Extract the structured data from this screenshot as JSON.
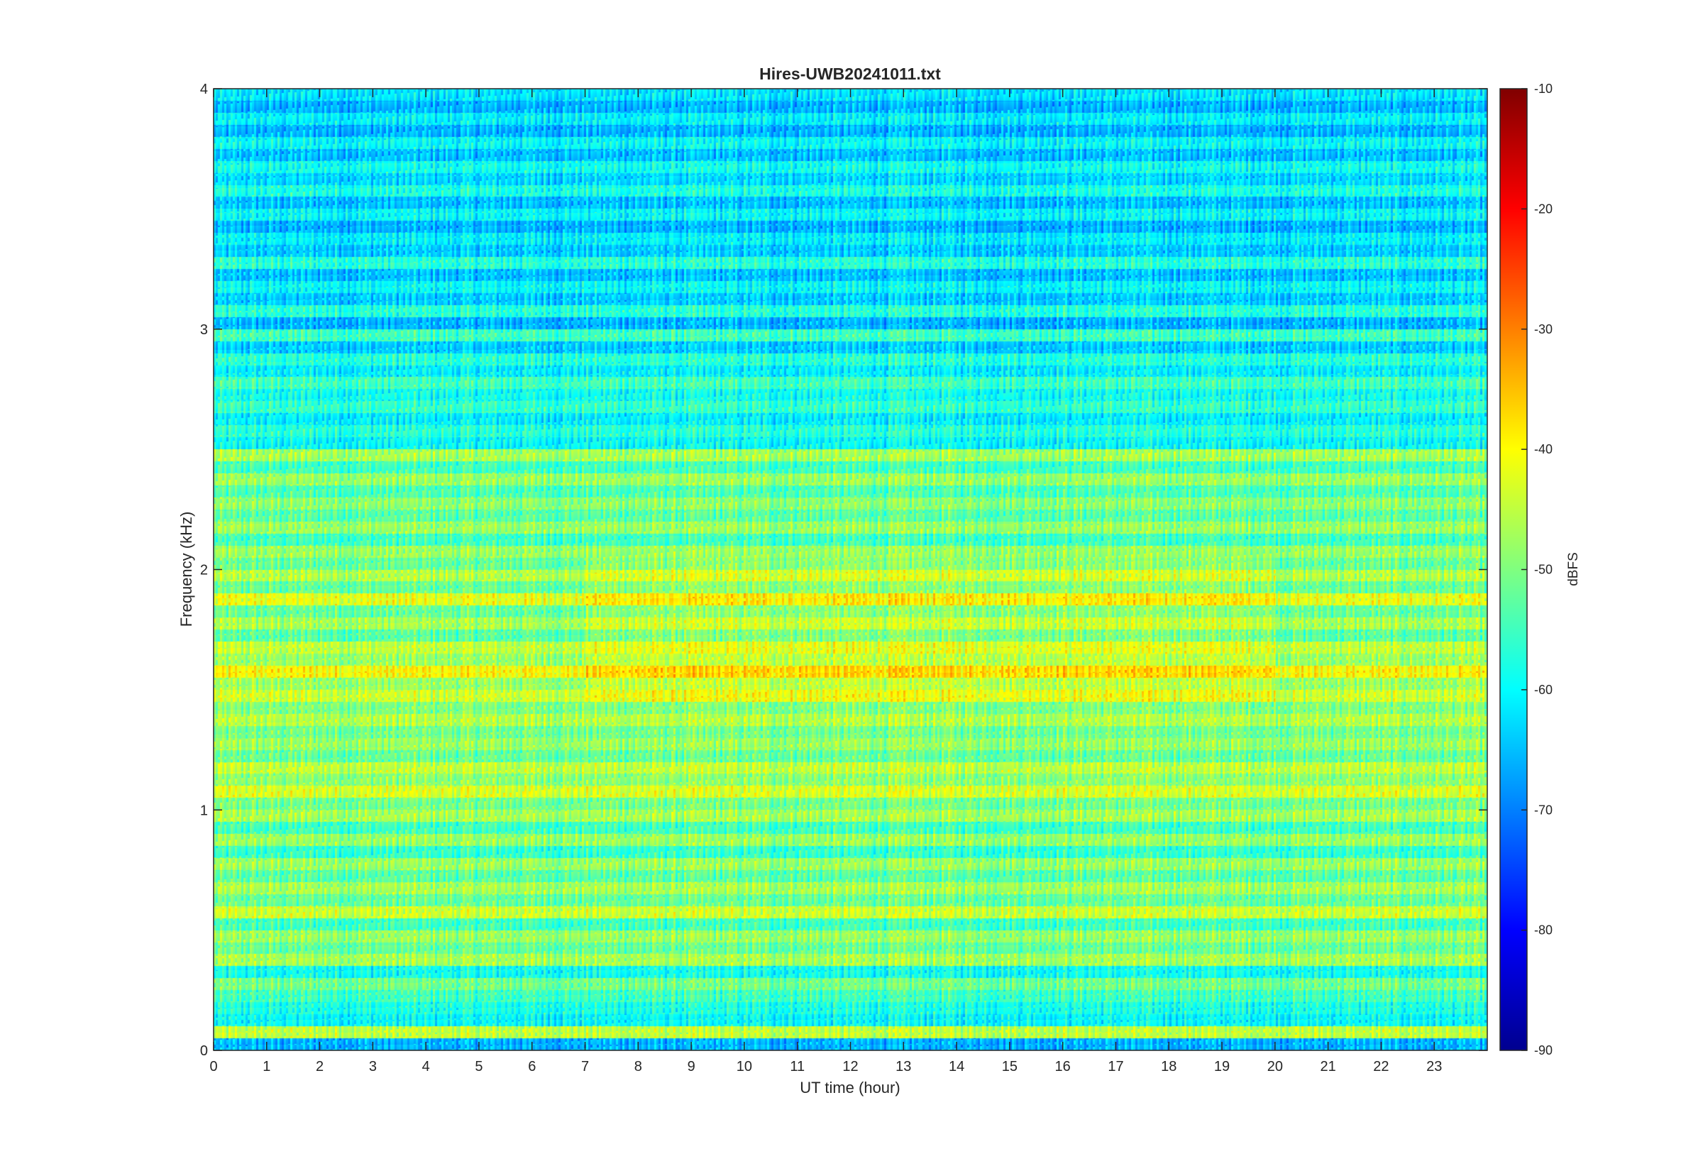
{
  "chart_data": {
    "type": "heatmap",
    "title": "Hires-UWB20241011.txt",
    "xlabel": "UT time (hour)",
    "ylabel": "Frequency (kHz)",
    "colorbar_label": "dBFS",
    "xlim": [
      0,
      24
    ],
    "ylim": [
      0,
      4
    ],
    "clim": [
      -90,
      -10
    ],
    "colormap": "jet",
    "x_ticks": [
      0,
      1,
      2,
      3,
      4,
      5,
      6,
      7,
      8,
      9,
      10,
      11,
      12,
      13,
      14,
      15,
      16,
      17,
      18,
      19,
      20,
      21,
      22,
      23
    ],
    "y_ticks": [
      0,
      1,
      2,
      3,
      4
    ],
    "colorbar_ticks": [
      -90,
      -80,
      -70,
      -60,
      -50,
      -40,
      -30,
      -20,
      -10
    ],
    "grid": false,
    "legend": "none",
    "bands_khz_db": [
      [
        0.0,
        -66
      ],
      [
        0.05,
        -45
      ],
      [
        0.1,
        -60
      ],
      [
        0.15,
        -58
      ],
      [
        0.2,
        -55
      ],
      [
        0.25,
        -51
      ],
      [
        0.3,
        -59
      ],
      [
        0.35,
        -47
      ],
      [
        0.4,
        -52
      ],
      [
        0.45,
        -48
      ],
      [
        0.5,
        -55
      ],
      [
        0.55,
        -44
      ],
      [
        0.6,
        -52
      ],
      [
        0.65,
        -47
      ],
      [
        0.7,
        -53
      ],
      [
        0.75,
        -48
      ],
      [
        0.8,
        -56
      ],
      [
        0.85,
        -48
      ],
      [
        0.9,
        -55
      ],
      [
        0.95,
        -47
      ],
      [
        1.0,
        -51
      ],
      [
        1.05,
        -43
      ],
      [
        1.1,
        -49
      ],
      [
        1.15,
        -45
      ],
      [
        1.2,
        -52
      ],
      [
        1.25,
        -48
      ],
      [
        1.3,
        -51
      ],
      [
        1.35,
        -46
      ],
      [
        1.4,
        -50
      ],
      [
        1.45,
        -44
      ],
      [
        1.5,
        -48
      ],
      [
        1.55,
        -40
      ],
      [
        1.6,
        -48
      ],
      [
        1.65,
        -45
      ],
      [
        1.7,
        -53
      ],
      [
        1.75,
        -47
      ],
      [
        1.8,
        -52
      ],
      [
        1.85,
        -42
      ],
      [
        1.9,
        -52
      ],
      [
        1.95,
        -46
      ],
      [
        2.0,
        -52
      ],
      [
        2.05,
        -48
      ],
      [
        2.1,
        -55
      ],
      [
        2.15,
        -48
      ],
      [
        2.2,
        -53
      ],
      [
        2.25,
        -49
      ],
      [
        2.3,
        -54
      ],
      [
        2.35,
        -48
      ],
      [
        2.4,
        -55
      ],
      [
        2.45,
        -47
      ],
      [
        2.5,
        -60
      ],
      [
        2.55,
        -57
      ],
      [
        2.6,
        -61
      ],
      [
        2.65,
        -56
      ],
      [
        2.7,
        -59
      ],
      [
        2.75,
        -55
      ],
      [
        2.8,
        -61
      ],
      [
        2.85,
        -57
      ],
      [
        2.9,
        -64
      ],
      [
        2.95,
        -55
      ],
      [
        3.0,
        -66
      ],
      [
        3.05,
        -57
      ],
      [
        3.1,
        -64
      ],
      [
        3.15,
        -60
      ],
      [
        3.2,
        -65
      ],
      [
        3.25,
        -57
      ],
      [
        3.3,
        -64
      ],
      [
        3.35,
        -61
      ],
      [
        3.4,
        -66
      ],
      [
        3.45,
        -60
      ],
      [
        3.5,
        -65
      ],
      [
        3.55,
        -58
      ],
      [
        3.6,
        -63
      ],
      [
        3.65,
        -59
      ],
      [
        3.7,
        -65
      ],
      [
        3.75,
        -60
      ],
      [
        3.8,
        -66
      ],
      [
        3.85,
        -61
      ],
      [
        3.9,
        -66
      ],
      [
        3.95,
        -62
      ]
    ]
  }
}
